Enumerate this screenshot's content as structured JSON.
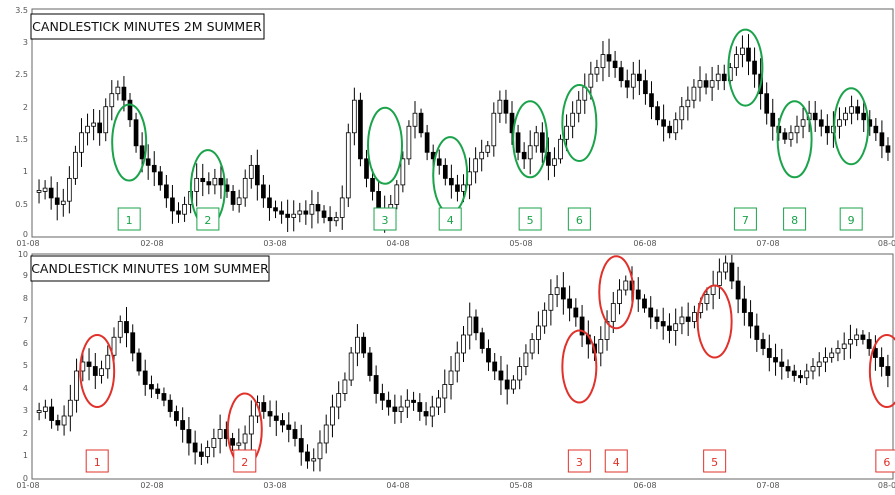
{
  "colors": {
    "green": "#1aa34a",
    "red": "#e0312a",
    "candle": "#000000",
    "grid": "#d9d9d9",
    "axis": "#555555"
  },
  "chart_data": [
    {
      "type": "candlestick",
      "title": "CANDLESTICK MINUTES 2M SUMMER",
      "x_ticks": [
        "01-08",
        "02-08",
        "03-08",
        "04-08",
        "05-08",
        "06-08",
        "07-08",
        "08-0"
      ],
      "y_ticks": [
        "0",
        "0.5",
        "1",
        "1.5",
        "2",
        "2.5",
        "3",
        "3.5"
      ],
      "ylim": [
        0,
        3.5
      ],
      "grid": false,
      "marker_color": "#1aa34a",
      "markers": [
        {
          "label": "1",
          "x": 0.79,
          "y": 1.45
        },
        {
          "label": "2",
          "x": 1.43,
          "y": 0.75
        },
        {
          "label": "3",
          "x": 2.87,
          "y": 1.4
        },
        {
          "label": "4",
          "x": 3.4,
          "y": 0.95
        },
        {
          "label": "5",
          "x": 4.05,
          "y": 1.5
        },
        {
          "label": "6",
          "x": 4.45,
          "y": 1.75
        },
        {
          "label": "7",
          "x": 5.8,
          "y": 2.6
        },
        {
          "label": "8",
          "x": 6.2,
          "y": 1.5
        },
        {
          "label": "9",
          "x": 6.66,
          "y": 1.7
        }
      ],
      "series": [
        0.7,
        0.75,
        0.6,
        0.5,
        0.55,
        0.9,
        1.3,
        1.6,
        1.7,
        1.75,
        1.6,
        2.0,
        2.2,
        2.3,
        2.1,
        1.8,
        1.4,
        1.2,
        1.1,
        1.0,
        0.8,
        0.6,
        0.4,
        0.35,
        0.5,
        0.7,
        0.9,
        0.85,
        0.8,
        0.9,
        0.8,
        0.7,
        0.5,
        0.6,
        0.9,
        1.1,
        0.8,
        0.6,
        0.45,
        0.4,
        0.35,
        0.3,
        0.35,
        0.4,
        0.35,
        0.5,
        0.4,
        0.3,
        0.25,
        0.3,
        0.6,
        1.6,
        2.1,
        1.2,
        0.9,
        0.7,
        0.4,
        0.3,
        0.5,
        0.8,
        1.2,
        1.7,
        1.9,
        1.6,
        1.3,
        1.2,
        1.1,
        0.9,
        0.8,
        0.7,
        0.8,
        1.0,
        1.2,
        1.3,
        1.4,
        1.9,
        2.1,
        1.9,
        1.6,
        1.3,
        1.2,
        1.4,
        1.6,
        1.3,
        1.1,
        1.2,
        1.5,
        1.7,
        1.9,
        2.1,
        2.3,
        2.5,
        2.6,
        2.8,
        2.7,
        2.6,
        2.4,
        2.3,
        2.5,
        2.4,
        2.2,
        2.0,
        1.8,
        1.7,
        1.6,
        1.8,
        2.0,
        2.1,
        2.3,
        2.4,
        2.3,
        2.4,
        2.5,
        2.4,
        2.6,
        2.8,
        2.9,
        2.7,
        2.5,
        2.2,
        1.9,
        1.7,
        1.6,
        1.5,
        1.6,
        1.7,
        1.8,
        1.9,
        1.8,
        1.7,
        1.6,
        1.7,
        1.8,
        1.9,
        2.0,
        1.9,
        1.8,
        1.7,
        1.6,
        1.4,
        1.3
      ]
    },
    {
      "type": "candlestick",
      "title": "CANDLESTICK MINUTES 10M SUMMER",
      "x_ticks": [
        "01-08",
        "02-08",
        "03-08",
        "04-08",
        "05-08",
        "06-08",
        "07-08",
        "08-0"
      ],
      "y_ticks": [
        "0",
        "1",
        "2",
        "3",
        "4",
        "5",
        "6",
        "7",
        "8",
        "9",
        "10"
      ],
      "ylim": [
        0,
        10
      ],
      "grid": false,
      "marker_color": "#e0312a",
      "markers": [
        {
          "label": "1",
          "x": 0.53,
          "y": 4.8
        },
        {
          "label": "2",
          "x": 1.73,
          "y": 2.2
        },
        {
          "label": "3",
          "x": 4.45,
          "y": 5.0
        },
        {
          "label": "4",
          "x": 4.75,
          "y": 8.3
        },
        {
          "label": "5",
          "x": 5.55,
          "y": 7.0
        },
        {
          "label": "6",
          "x": 6.95,
          "y": 4.8
        }
      ],
      "series": [
        3.0,
        3.2,
        2.6,
        2.4,
        2.8,
        3.5,
        4.8,
        5.2,
        5.0,
        4.6,
        4.9,
        5.5,
        6.3,
        7.0,
        6.5,
        5.6,
        4.8,
        4.2,
        4.0,
        3.8,
        3.5,
        3.0,
        2.6,
        2.2,
        1.6,
        1.2,
        1.0,
        1.4,
        1.8,
        2.2,
        1.8,
        1.5,
        1.6,
        2.0,
        2.8,
        3.4,
        3.0,
        2.8,
        2.6,
        2.4,
        2.2,
        1.8,
        1.2,
        0.8,
        0.9,
        1.6,
        2.4,
        3.2,
        3.8,
        4.4,
        5.6,
        6.3,
        5.6,
        4.6,
        3.8,
        3.5,
        3.2,
        3.0,
        3.2,
        3.5,
        3.4,
        3.0,
        2.8,
        3.2,
        3.6,
        4.2,
        4.8,
        5.6,
        6.4,
        7.2,
        6.5,
        5.8,
        5.2,
        4.8,
        4.4,
        4.0,
        4.4,
        5.0,
        5.6,
        6.2,
        6.8,
        7.5,
        8.2,
        8.5,
        8.0,
        7.6,
        7.2,
        6.4,
        6.0,
        5.6,
        6.2,
        7.0,
        7.8,
        8.4,
        8.8,
        8.4,
        8.0,
        7.6,
        7.2,
        7.0,
        6.8,
        6.6,
        6.9,
        7.2,
        7.0,
        7.4,
        7.8,
        8.2,
        8.6,
        9.2,
        9.6,
        8.8,
        8.0,
        7.4,
        6.8,
        6.2,
        5.8,
        5.4,
        5.2,
        5.0,
        4.8,
        4.6,
        4.5,
        4.8,
        5.0,
        5.2,
        5.4,
        5.6,
        5.8,
        6.0,
        6.2,
        6.4,
        6.2,
        5.8,
        5.4,
        5.0,
        4.6
      ]
    }
  ]
}
